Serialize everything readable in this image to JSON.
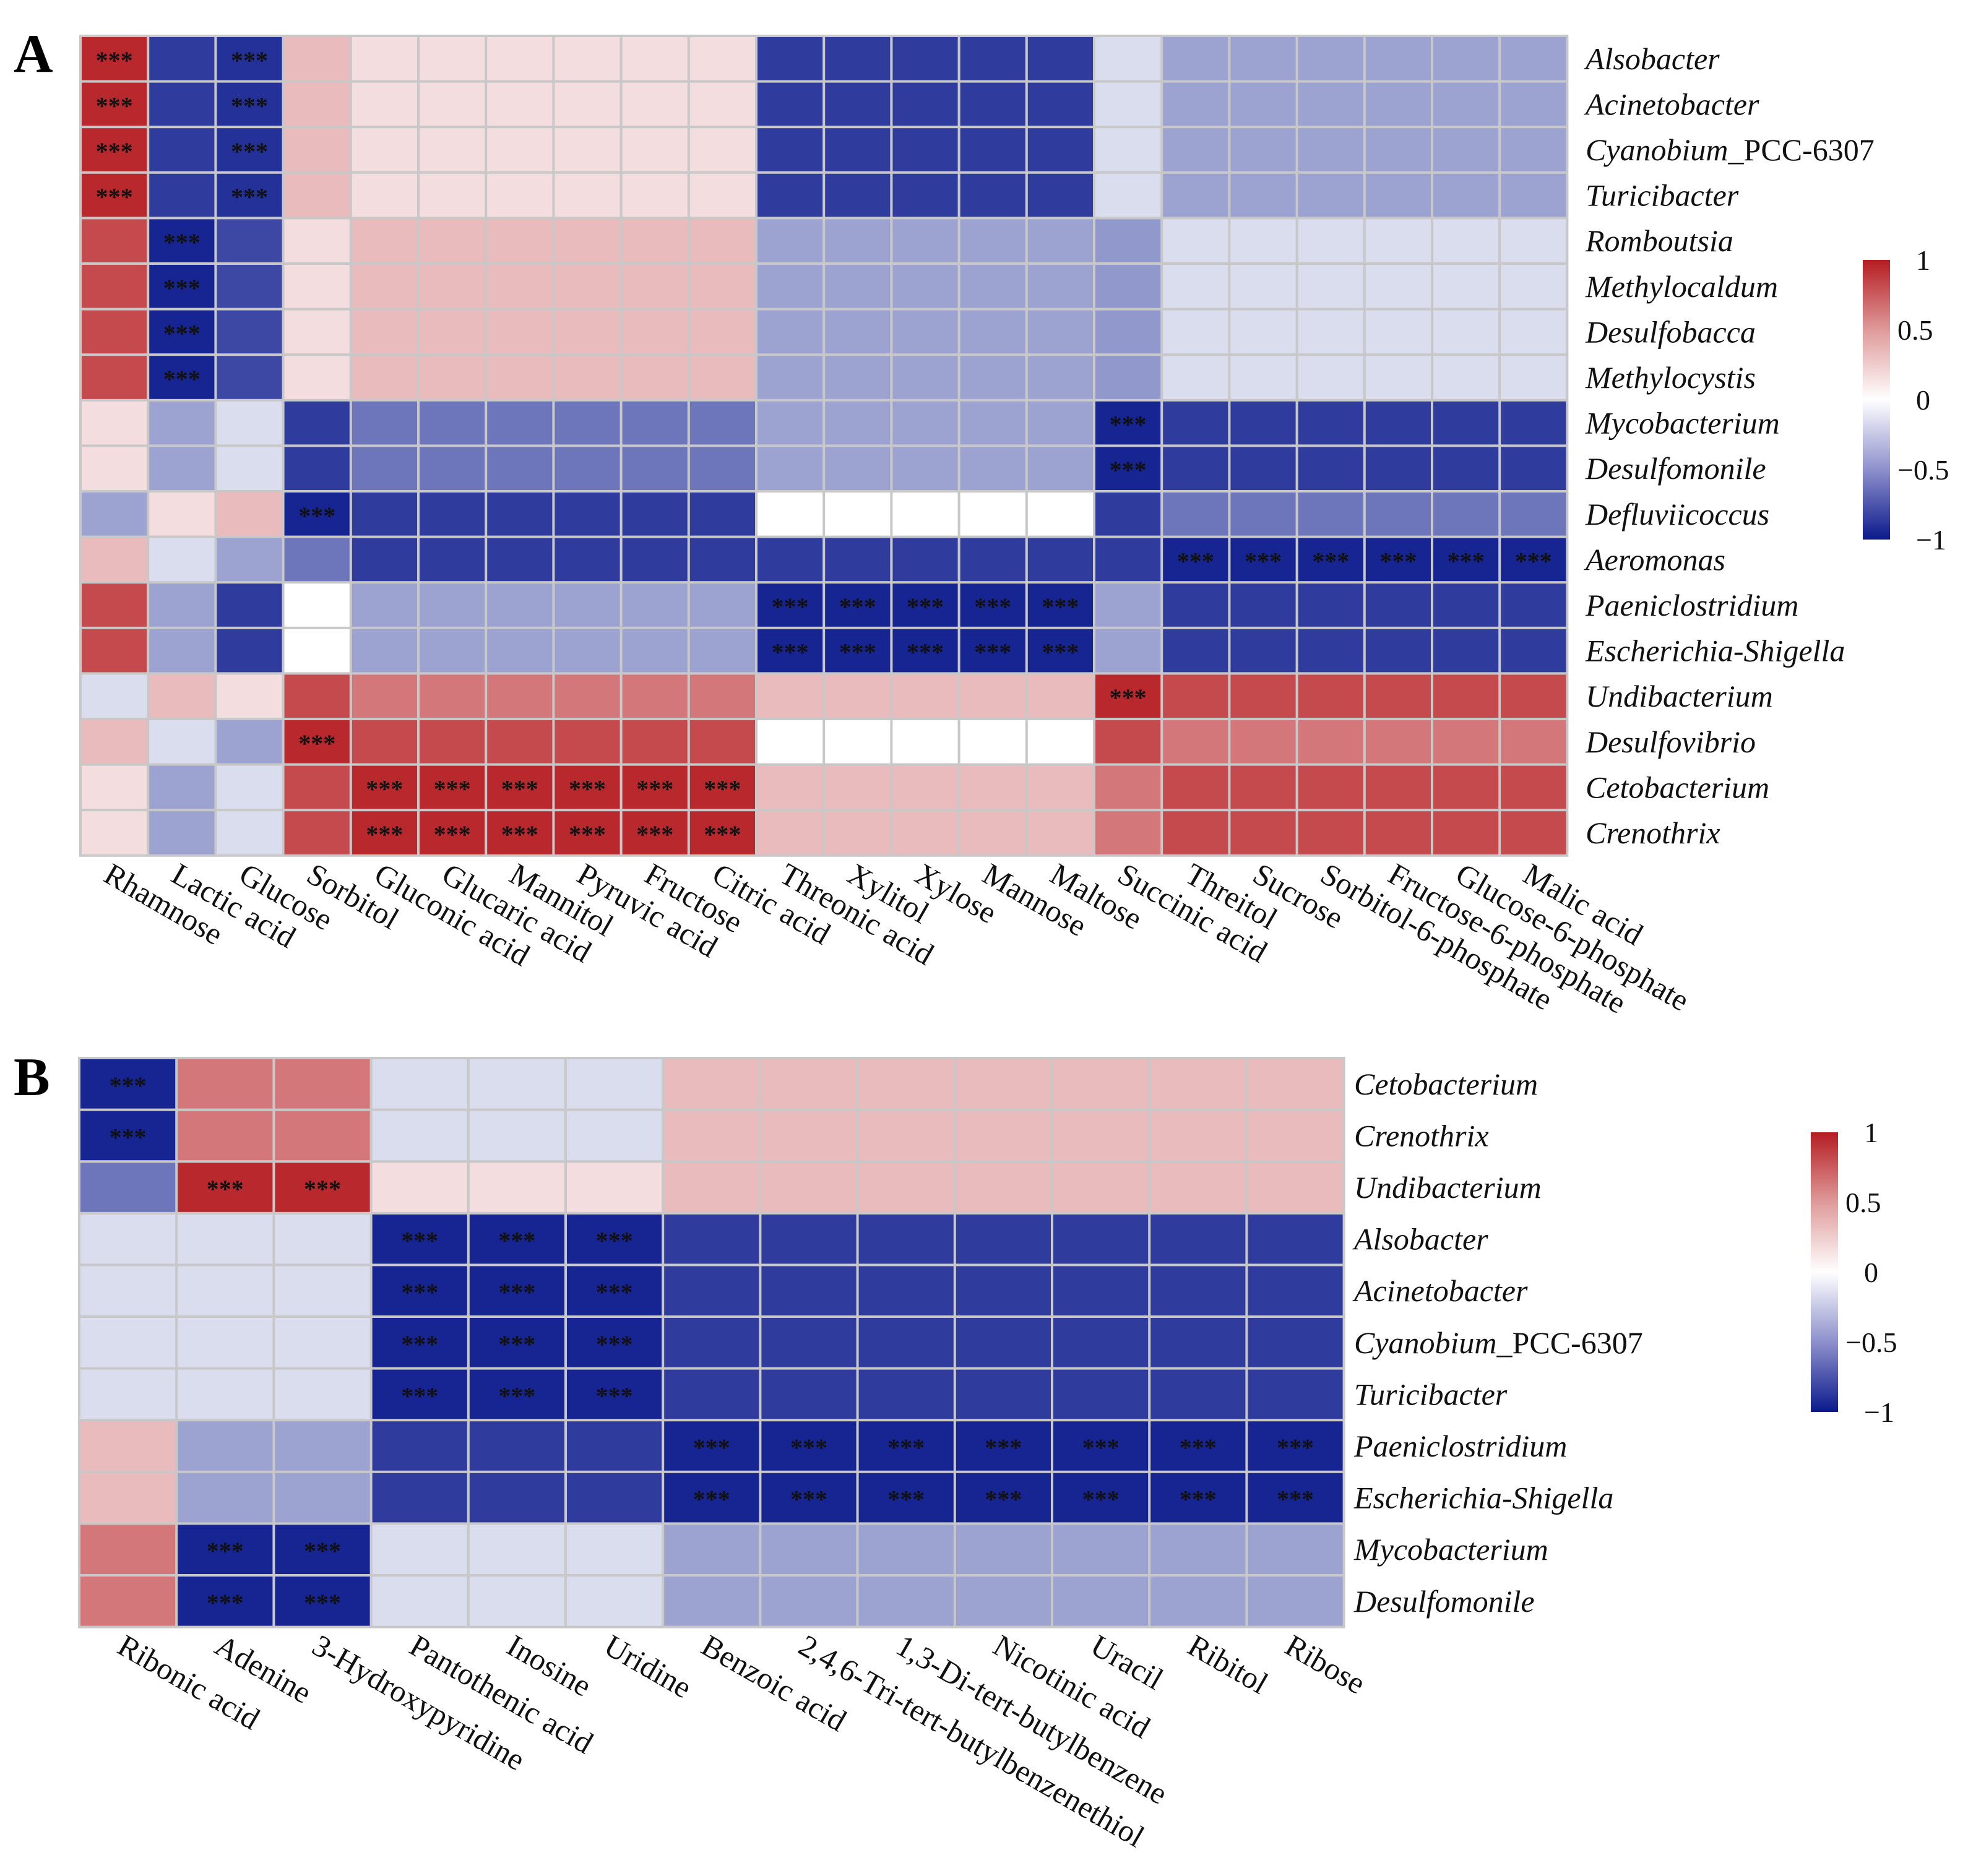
{
  "chart_data": [
    {
      "type": "heatmap",
      "panel_label": "A",
      "rows": [
        "Alsobacter",
        "Acinetobacter",
        "Cyanobium_PCC-6307",
        "Turicibacter",
        "Romboutsia",
        "Methylocaldum",
        "Desulfobacca",
        "Methylocystis",
        "Mycobacterium",
        "Desulfomonile",
        "Defluviicoccus",
        "Aeromonas",
        "Paeniclostridium",
        "Escherichia-Shigella",
        "Undibacterium",
        "Desulfovibrio",
        "Cetobacterium",
        "Crenothrix"
      ],
      "columns": [
        "Rhamnose",
        "Lactic acid",
        "Glucose",
        "Sorbitol",
        "Gluconic acid",
        "Glucaric acid",
        "Mannitol",
        "Pyruvic acid",
        "Fructose",
        "Citric acid",
        "Threonic acid",
        "Xylitol",
        "Xylose",
        "Mannose",
        "Maltose",
        "Succinic acid",
        "Threitol",
        "Sucrose",
        "Sorbitol-6-phosphate",
        "Fructose-6-phosphate",
        "Glucose-6-phosphate",
        "Malic acid"
      ],
      "values": [
        [
          0.95,
          -0.85,
          -0.9,
          0.3,
          0.15,
          0.15,
          0.15,
          0.15,
          0.15,
          0.15,
          -0.85,
          -0.85,
          -0.85,
          -0.85,
          -0.85,
          -0.15,
          -0.4,
          -0.4,
          -0.4,
          -0.4,
          -0.4,
          -0.4
        ],
        [
          0.95,
          -0.85,
          -0.9,
          0.3,
          0.15,
          0.15,
          0.15,
          0.15,
          0.15,
          0.15,
          -0.85,
          -0.85,
          -0.85,
          -0.85,
          -0.85,
          -0.15,
          -0.4,
          -0.4,
          -0.4,
          -0.4,
          -0.4,
          -0.4
        ],
        [
          0.95,
          -0.85,
          -0.9,
          0.3,
          0.15,
          0.15,
          0.15,
          0.15,
          0.15,
          0.15,
          -0.85,
          -0.85,
          -0.85,
          -0.85,
          -0.85,
          -0.15,
          -0.4,
          -0.4,
          -0.4,
          -0.4,
          -0.4,
          -0.4
        ],
        [
          0.95,
          -0.85,
          -0.9,
          0.3,
          0.15,
          0.15,
          0.15,
          0.15,
          0.15,
          0.15,
          -0.85,
          -0.85,
          -0.85,
          -0.85,
          -0.85,
          -0.15,
          -0.4,
          -0.4,
          -0.4,
          -0.4,
          -0.4,
          -0.4
        ],
        [
          0.8,
          -0.95,
          -0.8,
          0.15,
          0.3,
          0.3,
          0.3,
          0.3,
          0.3,
          0.3,
          -0.4,
          -0.4,
          -0.4,
          -0.4,
          -0.4,
          -0.45,
          -0.15,
          -0.15,
          -0.15,
          -0.15,
          -0.15,
          -0.15
        ],
        [
          0.8,
          -0.95,
          -0.8,
          0.15,
          0.3,
          0.3,
          0.3,
          0.3,
          0.3,
          0.3,
          -0.4,
          -0.4,
          -0.4,
          -0.4,
          -0.4,
          -0.45,
          -0.15,
          -0.15,
          -0.15,
          -0.15,
          -0.15,
          -0.15
        ],
        [
          0.8,
          -0.95,
          -0.8,
          0.15,
          0.3,
          0.3,
          0.3,
          0.3,
          0.3,
          0.3,
          -0.4,
          -0.4,
          -0.4,
          -0.4,
          -0.4,
          -0.45,
          -0.15,
          -0.15,
          -0.15,
          -0.15,
          -0.15,
          -0.15
        ],
        [
          0.8,
          -0.95,
          -0.8,
          0.15,
          0.3,
          0.3,
          0.3,
          0.3,
          0.3,
          0.3,
          -0.4,
          -0.4,
          -0.4,
          -0.4,
          -0.4,
          -0.45,
          -0.15,
          -0.15,
          -0.15,
          -0.15,
          -0.15,
          -0.15
        ],
        [
          0.15,
          -0.4,
          -0.15,
          -0.85,
          -0.6,
          -0.6,
          -0.6,
          -0.6,
          -0.6,
          -0.6,
          -0.4,
          -0.4,
          -0.4,
          -0.4,
          -0.4,
          -0.95,
          -0.85,
          -0.85,
          -0.85,
          -0.85,
          -0.85,
          -0.85
        ],
        [
          0.15,
          -0.4,
          -0.15,
          -0.85,
          -0.6,
          -0.6,
          -0.6,
          -0.6,
          -0.6,
          -0.6,
          -0.4,
          -0.4,
          -0.4,
          -0.4,
          -0.4,
          -0.95,
          -0.85,
          -0.85,
          -0.85,
          -0.85,
          -0.85,
          -0.85
        ],
        [
          -0.4,
          0.15,
          0.3,
          -0.95,
          -0.85,
          -0.85,
          -0.85,
          -0.85,
          -0.85,
          -0.85,
          0.0,
          0.0,
          0.0,
          0.0,
          0.0,
          -0.85,
          -0.6,
          -0.6,
          -0.6,
          -0.6,
          -0.6,
          -0.6
        ],
        [
          0.3,
          -0.15,
          -0.4,
          -0.6,
          -0.85,
          -0.85,
          -0.85,
          -0.85,
          -0.85,
          -0.85,
          -0.85,
          -0.85,
          -0.85,
          -0.85,
          -0.85,
          -0.85,
          -0.95,
          -0.95,
          -0.95,
          -0.95,
          -0.95,
          -0.95
        ],
        [
          0.8,
          -0.4,
          -0.85,
          0.0,
          -0.4,
          -0.4,
          -0.4,
          -0.4,
          -0.4,
          -0.4,
          -0.95,
          -0.95,
          -0.95,
          -0.95,
          -0.95,
          -0.4,
          -0.85,
          -0.85,
          -0.85,
          -0.85,
          -0.85,
          -0.85
        ],
        [
          0.8,
          -0.4,
          -0.85,
          0.0,
          -0.4,
          -0.4,
          -0.4,
          -0.4,
          -0.4,
          -0.4,
          -0.95,
          -0.95,
          -0.95,
          -0.95,
          -0.95,
          -0.4,
          -0.85,
          -0.85,
          -0.85,
          -0.85,
          -0.85,
          -0.85
        ],
        [
          -0.15,
          0.3,
          0.15,
          0.8,
          0.6,
          0.6,
          0.6,
          0.6,
          0.6,
          0.6,
          0.3,
          0.3,
          0.3,
          0.3,
          0.3,
          0.95,
          0.8,
          0.8,
          0.8,
          0.8,
          0.8,
          0.8
        ],
        [
          0.3,
          -0.15,
          -0.4,
          0.95,
          0.8,
          0.8,
          0.8,
          0.8,
          0.8,
          0.8,
          0.0,
          0.0,
          0.0,
          0.0,
          0.0,
          0.8,
          0.6,
          0.6,
          0.6,
          0.6,
          0.6,
          0.6
        ],
        [
          0.15,
          -0.4,
          -0.15,
          0.8,
          0.95,
          0.95,
          0.95,
          0.95,
          0.95,
          0.95,
          0.3,
          0.3,
          0.3,
          0.3,
          0.3,
          0.6,
          0.8,
          0.8,
          0.8,
          0.8,
          0.8,
          0.8
        ],
        [
          0.15,
          -0.4,
          -0.15,
          0.8,
          0.95,
          0.95,
          0.95,
          0.95,
          0.95,
          0.95,
          0.3,
          0.3,
          0.3,
          0.3,
          0.3,
          0.6,
          0.8,
          0.8,
          0.8,
          0.8,
          0.8,
          0.8
        ]
      ],
      "significance_marker": "***",
      "significant_cells": [
        [
          0,
          0
        ],
        [
          0,
          2
        ],
        [
          1,
          0
        ],
        [
          1,
          2
        ],
        [
          2,
          0
        ],
        [
          2,
          2
        ],
        [
          3,
          0
        ],
        [
          3,
          2
        ],
        [
          4,
          1
        ],
        [
          5,
          1
        ],
        [
          6,
          1
        ],
        [
          7,
          1
        ],
        [
          8,
          15
        ],
        [
          9,
          15
        ],
        [
          10,
          3
        ],
        [
          11,
          16
        ],
        [
          11,
          17
        ],
        [
          11,
          18
        ],
        [
          11,
          19
        ],
        [
          11,
          20
        ],
        [
          11,
          21
        ],
        [
          12,
          10
        ],
        [
          12,
          11
        ],
        [
          12,
          12
        ],
        [
          12,
          13
        ],
        [
          12,
          14
        ],
        [
          13,
          10
        ],
        [
          13,
          11
        ],
        [
          13,
          12
        ],
        [
          13,
          13
        ],
        [
          13,
          14
        ],
        [
          14,
          15
        ],
        [
          15,
          3
        ],
        [
          16,
          4
        ],
        [
          16,
          5
        ],
        [
          16,
          6
        ],
        [
          16,
          7
        ],
        [
          16,
          8
        ],
        [
          16,
          9
        ],
        [
          17,
          4
        ],
        [
          17,
          5
        ],
        [
          17,
          6
        ],
        [
          17,
          7
        ],
        [
          17,
          8
        ],
        [
          17,
          9
        ]
      ],
      "color_scale": {
        "min": -1,
        "max": 1,
        "low": "#0b1a8c",
        "mid": "#ffffff",
        "high": "#b51d22"
      },
      "legend_ticks": [
        "1",
        "0.5",
        "0",
        "−0.5",
        "−1"
      ],
      "legend_position": "right"
    },
    {
      "type": "heatmap",
      "panel_label": "B",
      "rows": [
        "Cetobacterium",
        "Crenothrix",
        "Undibacterium",
        "Alsobacter",
        "Acinetobacter",
        "Cyanobium_PCC-6307",
        "Turicibacter",
        "Paeniclostridium",
        "Escherichia-Shigella",
        "Mycobacterium",
        "Desulfomonile"
      ],
      "columns": [
        "Ribonic acid",
        "Adenine",
        "3-Hydroxypyridine",
        "Pantothenic acid",
        "Inosine",
        "Uridine",
        "Benzoic acid",
        "2,4,6-Tri-tert-butylbenzenethiol",
        "1,3-Di-tert-butylbenzene",
        "Nicotinic acid",
        "Uracil",
        "Ribitol",
        "Ribose"
      ],
      "values": [
        [
          -0.95,
          0.6,
          0.6,
          -0.15,
          -0.15,
          -0.15,
          0.3,
          0.3,
          0.3,
          0.3,
          0.3,
          0.3,
          0.3
        ],
        [
          -0.95,
          0.6,
          0.6,
          -0.15,
          -0.15,
          -0.15,
          0.3,
          0.3,
          0.3,
          0.3,
          0.3,
          0.3,
          0.3
        ],
        [
          -0.6,
          0.95,
          0.95,
          0.15,
          0.15,
          0.15,
          0.3,
          0.3,
          0.3,
          0.3,
          0.3,
          0.3,
          0.3
        ],
        [
          -0.15,
          -0.15,
          -0.15,
          -0.95,
          -0.95,
          -0.95,
          -0.85,
          -0.85,
          -0.85,
          -0.85,
          -0.85,
          -0.85,
          -0.85
        ],
        [
          -0.15,
          -0.15,
          -0.15,
          -0.95,
          -0.95,
          -0.95,
          -0.85,
          -0.85,
          -0.85,
          -0.85,
          -0.85,
          -0.85,
          -0.85
        ],
        [
          -0.15,
          -0.15,
          -0.15,
          -0.95,
          -0.95,
          -0.95,
          -0.85,
          -0.85,
          -0.85,
          -0.85,
          -0.85,
          -0.85,
          -0.85
        ],
        [
          -0.15,
          -0.15,
          -0.15,
          -0.95,
          -0.95,
          -0.95,
          -0.85,
          -0.85,
          -0.85,
          -0.85,
          -0.85,
          -0.85,
          -0.85
        ],
        [
          0.3,
          -0.4,
          -0.4,
          -0.85,
          -0.85,
          -0.85,
          -0.95,
          -0.95,
          -0.95,
          -0.95,
          -0.95,
          -0.95,
          -0.95
        ],
        [
          0.3,
          -0.4,
          -0.4,
          -0.85,
          -0.85,
          -0.85,
          -0.95,
          -0.95,
          -0.95,
          -0.95,
          -0.95,
          -0.95,
          -0.95
        ],
        [
          0.6,
          -0.95,
          -0.95,
          -0.15,
          -0.15,
          -0.15,
          -0.4,
          -0.4,
          -0.4,
          -0.4,
          -0.4,
          -0.4,
          -0.4
        ],
        [
          0.6,
          -0.95,
          -0.95,
          -0.15,
          -0.15,
          -0.15,
          -0.4,
          -0.4,
          -0.4,
          -0.4,
          -0.4,
          -0.4,
          -0.4
        ]
      ],
      "significance_marker": "***",
      "significant_cells": [
        [
          0,
          0
        ],
        [
          1,
          0
        ],
        [
          2,
          1
        ],
        [
          2,
          2
        ],
        [
          3,
          3
        ],
        [
          3,
          4
        ],
        [
          3,
          5
        ],
        [
          4,
          3
        ],
        [
          4,
          4
        ],
        [
          4,
          5
        ],
        [
          5,
          3
        ],
        [
          5,
          4
        ],
        [
          5,
          5
        ],
        [
          6,
          3
        ],
        [
          6,
          4
        ],
        [
          6,
          5
        ],
        [
          7,
          6
        ],
        [
          7,
          7
        ],
        [
          7,
          8
        ],
        [
          7,
          9
        ],
        [
          7,
          10
        ],
        [
          7,
          11
        ],
        [
          7,
          12
        ],
        [
          8,
          6
        ],
        [
          8,
          7
        ],
        [
          8,
          8
        ],
        [
          8,
          9
        ],
        [
          8,
          10
        ],
        [
          8,
          11
        ],
        [
          8,
          12
        ],
        [
          9,
          1
        ],
        [
          9,
          2
        ],
        [
          10,
          1
        ],
        [
          10,
          2
        ]
      ],
      "color_scale": {
        "min": -1,
        "max": 1,
        "low": "#0b1a8c",
        "mid": "#ffffff",
        "high": "#b51d22"
      },
      "legend_ticks": [
        "1",
        "0.5",
        "0",
        "−0.5",
        "−1"
      ],
      "legend_position": "right"
    }
  ]
}
